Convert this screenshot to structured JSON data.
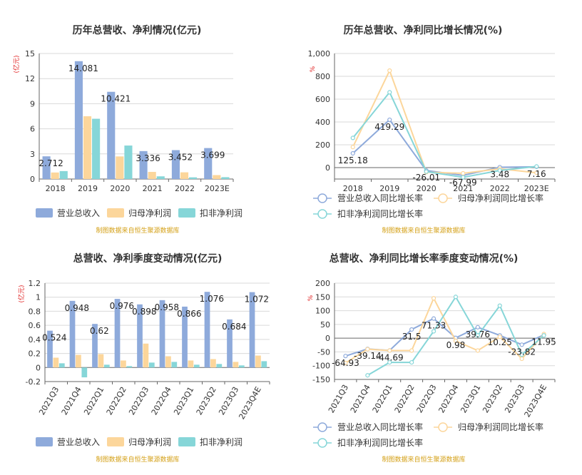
{
  "colors": {
    "revenue": "#8eaadb",
    "net_profit": "#fcd69b",
    "deducted_profit": "#86d6d8",
    "axis": "#333333",
    "grid": "#d9d9d9",
    "unit": "#e02020",
    "source": "#d4a017"
  },
  "chart_data": [
    {
      "type": "bar",
      "title": "历年总营收、净利情况(亿元)",
      "ylabel": "(亿元)",
      "categories": [
        "2018",
        "2019",
        "2020",
        "2021",
        "2022",
        "2023E"
      ],
      "series": [
        {
          "name": "营业总收入",
          "values": [
            2.712,
            14.081,
            10.421,
            3.336,
            3.452,
            3.699
          ]
        },
        {
          "name": "归母净利润",
          "values": [
            0.78,
            7.5,
            2.7,
            0.85,
            0.8,
            0.47
          ]
        },
        {
          "name": "扣非净利润",
          "values": [
            0.95,
            7.2,
            4.0,
            0.32,
            0.2,
            0.22
          ]
        }
      ],
      "data_labels": [
        "2.712",
        "14.081",
        "10.421",
        "3.336",
        "3.452",
        "3.699"
      ],
      "ylim": [
        0,
        15
      ],
      "yticks": [
        "0",
        "3",
        "6",
        "9",
        "12",
        "15"
      ],
      "legend_position": "bottom",
      "source": "制图数据来自恒生聚源数据库"
    },
    {
      "type": "line",
      "title": "历年总营收、净利同比增长情况(%)",
      "ylabel": "%",
      "categories": [
        "2018",
        "2019",
        "2020",
        "2021",
        "2022",
        "2023E"
      ],
      "series": [
        {
          "name": "营业总收入同比增长率",
          "values": [
            125.18,
            419.29,
            -26.01,
            -67.99,
            3.48,
            7.16
          ]
        },
        {
          "name": "归母净利润同比增长率",
          "values": [
            180,
            850,
            -40,
            -50,
            -10,
            -45
          ]
        },
        {
          "name": "扣非净利润同比增长率",
          "values": [
            260,
            660,
            -35,
            -85,
            -25,
            10
          ]
        }
      ],
      "data_labels": [
        "125.18",
        "419.29",
        "-26.01",
        "-67.99",
        "3.48",
        "7.16"
      ],
      "ylim": [
        -100,
        1000
      ],
      "yticks": [
        "0",
        "200",
        "400",
        "600",
        "800",
        "1,000"
      ],
      "legend_position": "bottom",
      "source": "制图数据来自恒生聚源数据库"
    },
    {
      "type": "bar",
      "title": "总营收、净利季度变动情况(亿元)",
      "ylabel": "(亿元)",
      "categories": [
        "2021Q3",
        "2021Q4",
        "2022Q1",
        "2022Q2",
        "2022Q3",
        "2022Q4",
        "2023Q1",
        "2023Q2",
        "2023Q3",
        "2023Q4E"
      ],
      "series": [
        {
          "name": "营业总收入",
          "values": [
            0.524,
            0.948,
            0.62,
            0.976,
            0.898,
            0.958,
            0.866,
            1.076,
            0.684,
            1.072
          ]
        },
        {
          "name": "归母净利润",
          "values": [
            0.14,
            0.18,
            0.19,
            0.1,
            0.34,
            0.16,
            0.1,
            0.12,
            0.08,
            0.17
          ]
        },
        {
          "name": "扣非净利润",
          "values": [
            0.06,
            -0.14,
            0.04,
            0.02,
            0.07,
            0.08,
            0.04,
            0.05,
            0.03,
            0.09
          ]
        }
      ],
      "data_labels": [
        "0.524",
        "0.948",
        "0.62",
        "0.976",
        "0.898",
        "0.958",
        "0.866",
        "1.076",
        "0.684",
        "1.072"
      ],
      "ylim": [
        -0.2,
        1.2
      ],
      "yticks": [
        "-0.2",
        "0",
        "0.2",
        "0.4",
        "0.6",
        "0.8",
        "1",
        "1.2"
      ],
      "legend_position": "bottom",
      "source": "制图数据来自恒生聚源数据库"
    },
    {
      "type": "line",
      "title": "总营收、净利同比增长率季度变动情况(%)",
      "ylabel": "%",
      "categories": [
        "2021Q3",
        "2021Q4",
        "2022Q1",
        "2022Q2",
        "2022Q3",
        "2022Q4",
        "2023Q1",
        "2023Q2",
        "2023Q3",
        "2023Q4E"
      ],
      "series": [
        {
          "name": "营业总收入同比增长率",
          "values": [
            -64.93,
            -39.14,
            -44.69,
            31.5,
            71.33,
            0.98,
            39.76,
            10.25,
            -23.82,
            11.95
          ]
        },
        {
          "name": "归母净利润同比增长率",
          "values": [
            -90,
            -40,
            -45,
            -45,
            145,
            -10,
            -45,
            5,
            -75,
            15
          ]
        },
        {
          "name": "扣非净利润同比增长率",
          "values": [
            null,
            -135,
            -88,
            -88,
            25,
            150,
            10,
            118,
            -60,
            10
          ]
        }
      ],
      "data_labels": [
        "-64.93",
        "-39.14",
        "-44.69",
        "31.5",
        "71.33",
        "0.98",
        "39.76",
        "10.25",
        "-23.82",
        "11.95"
      ],
      "ylim": [
        -150,
        200
      ],
      "yticks": [
        "-150",
        "-100",
        "-50",
        "0",
        "50",
        "100",
        "150",
        "200"
      ],
      "legend_position": "bottom",
      "source": "制图数据来自恒生聚源数据库"
    }
  ]
}
